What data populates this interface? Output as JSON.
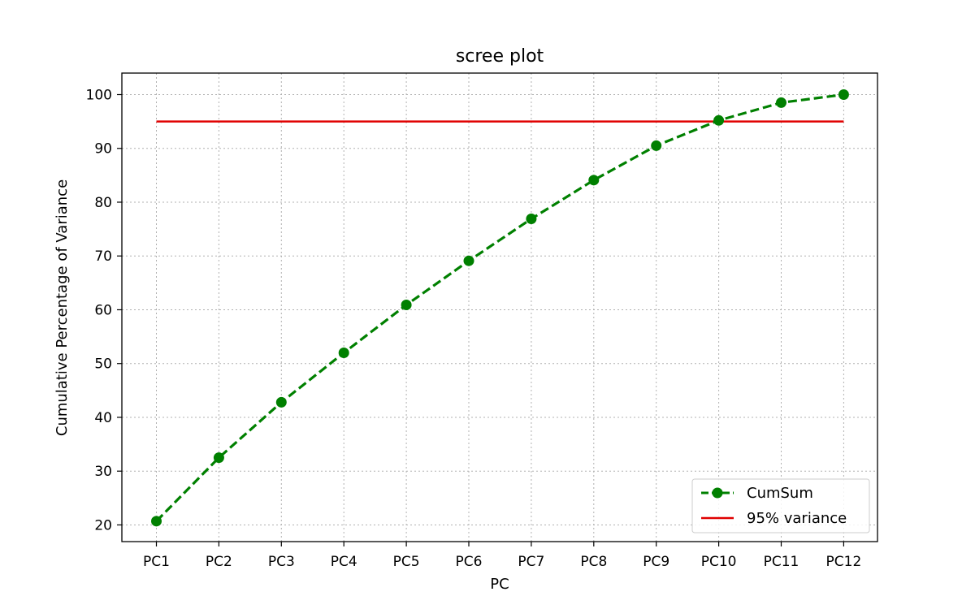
{
  "chart_data": {
    "type": "line",
    "title": "scree plot",
    "xlabel": "PC",
    "ylabel": "Cumulative Percentage of Variance",
    "categories": [
      "PC1",
      "PC2",
      "PC3",
      "PC4",
      "PC5",
      "PC6",
      "PC7",
      "PC8",
      "PC9",
      "PC10",
      "PC11",
      "PC12"
    ],
    "ylim": [
      16.9,
      104
    ],
    "yticks": [
      20,
      30,
      40,
      50,
      60,
      70,
      80,
      90,
      100
    ],
    "grid": true,
    "legend_position": "lower-right",
    "series": [
      {
        "name": "CumSum",
        "style": "dashed-with-circle-markers",
        "color": "#008000",
        "values": [
          20.7,
          32.5,
          42.8,
          52.0,
          60.9,
          69.1,
          76.9,
          84.1,
          90.5,
          95.2,
          98.5,
          100.0
        ]
      },
      {
        "name": "95% variance",
        "style": "solid",
        "color": "#e00000",
        "values": [
          95,
          95,
          95,
          95,
          95,
          95,
          95,
          95,
          95,
          95,
          95,
          95
        ]
      }
    ]
  }
}
